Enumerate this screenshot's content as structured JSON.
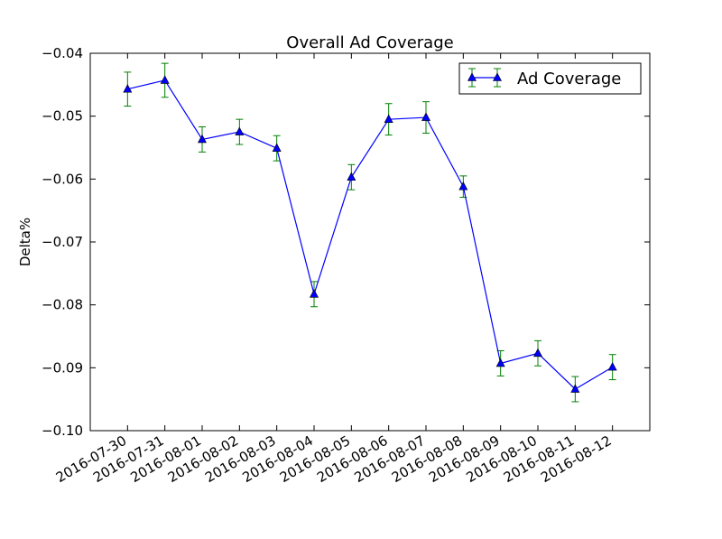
{
  "chart_data": {
    "type": "line",
    "title": "Overall Ad Coverage",
    "xlabel": "",
    "ylabel": "Delta%",
    "categories": [
      "2016-07-30",
      "2016-07-31",
      "2016-08-01",
      "2016-08-02",
      "2016-08-03",
      "2016-08-04",
      "2016-08-05",
      "2016-08-06",
      "2016-08-07",
      "2016-08-08",
      "2016-08-09",
      "2016-08-10",
      "2016-08-11",
      "2016-08-12"
    ],
    "ylim": [
      -0.1,
      -0.04
    ],
    "yticks": [
      -0.04,
      -0.05,
      -0.06,
      -0.07,
      -0.08,
      -0.09,
      -0.1
    ],
    "ytick_labels": [
      "−0.04",
      "−0.05",
      "−0.06",
      "−0.07",
      "−0.08",
      "−0.09",
      "−0.10"
    ],
    "grid": false,
    "legend": "top-right",
    "series": [
      {
        "name": "Ad Coverage",
        "color": "#0000ff",
        "marker": "triangle-up",
        "error_color": "#008000",
        "values": [
          -0.0457,
          -0.0443,
          -0.0537,
          -0.0525,
          -0.0551,
          -0.0783,
          -0.0597,
          -0.0505,
          -0.0502,
          -0.0612,
          -0.0893,
          -0.0877,
          -0.0934,
          -0.0899
        ],
        "errors": [
          0.0027,
          0.0027,
          0.002,
          0.002,
          0.002,
          0.002,
          0.002,
          0.0025,
          0.0025,
          0.0017,
          0.002,
          0.002,
          0.002,
          0.002
        ]
      }
    ]
  }
}
